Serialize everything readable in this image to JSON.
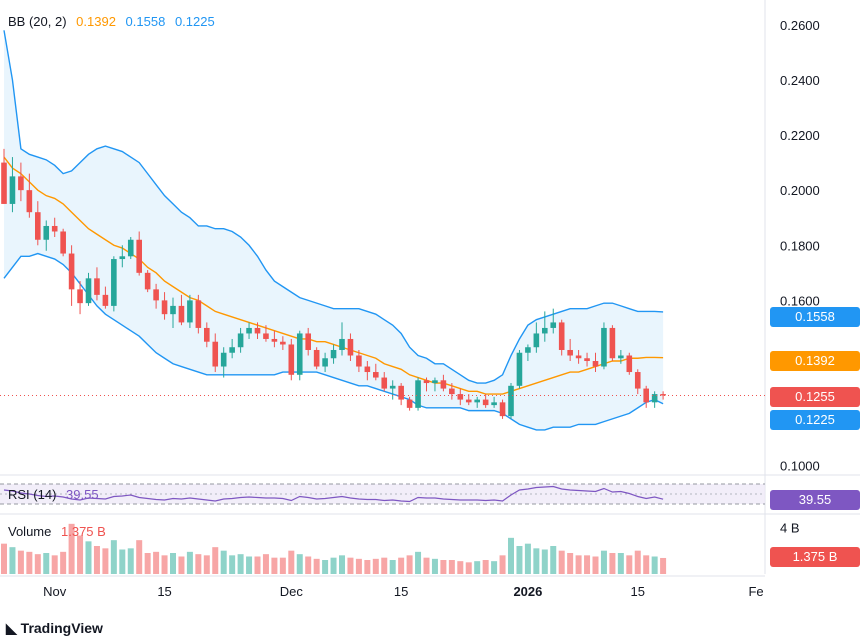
{
  "legends": {
    "bb": {
      "label": "BB (20, 2)",
      "basis": "0.1392",
      "upper": "0.1558",
      "lower": "0.1225"
    },
    "rsi": {
      "label": "RSI (14)",
      "value": "39.55"
    },
    "volume": {
      "label": "Volume",
      "value": "1.375 B"
    }
  },
  "price_tags": {
    "upper": "0.1558",
    "basis": "0.1392",
    "last": "0.1255",
    "lower": "0.1225",
    "rsi": "39.55",
    "volume": "1.375 B"
  },
  "axis": {
    "price_ticks": [
      "0.2600",
      "0.2400",
      "0.2200",
      "0.2000",
      "0.1800",
      "0.1600",
      "0.1000"
    ],
    "volume_tick": "4 B",
    "time_ticks": [
      "Nov",
      "15",
      "Dec",
      "15",
      "2026",
      "15",
      "Fe"
    ]
  },
  "branding": {
    "logo_text": "TradingView"
  },
  "colors": {
    "up": "#26a69a",
    "down": "#ef5350",
    "basis": "#ff9800",
    "band": "#2196f3",
    "band_fill": "#e3f2fd",
    "rsi": "#7e57c2",
    "vol_up": "#8fd3c9",
    "vol_down": "#f7a6a6"
  },
  "chart_data": {
    "type": "candlestick",
    "price_range": [
      0.097,
      0.269
    ],
    "candles": [
      [
        0.21,
        0.215,
        0.195,
        0.195
      ],
      [
        0.195,
        0.212,
        0.192,
        0.205
      ],
      [
        0.205,
        0.21,
        0.196,
        0.2
      ],
      [
        0.2,
        0.206,
        0.19,
        0.192
      ],
      [
        0.192,
        0.196,
        0.18,
        0.182
      ],
      [
        0.182,
        0.189,
        0.178,
        0.187
      ],
      [
        0.187,
        0.19,
        0.183,
        0.185
      ],
      [
        0.185,
        0.186,
        0.176,
        0.177
      ],
      [
        0.177,
        0.18,
        0.158,
        0.164
      ],
      [
        0.164,
        0.167,
        0.155,
        0.159
      ],
      [
        0.159,
        0.17,
        0.158,
        0.168
      ],
      [
        0.168,
        0.172,
        0.16,
        0.162
      ],
      [
        0.162,
        0.165,
        0.157,
        0.158
      ],
      [
        0.158,
        0.176,
        0.156,
        0.175
      ],
      [
        0.175,
        0.18,
        0.172,
        0.176
      ],
      [
        0.176,
        0.183,
        0.175,
        0.182
      ],
      [
        0.182,
        0.185,
        0.169,
        0.17
      ],
      [
        0.17,
        0.171,
        0.163,
        0.164
      ],
      [
        0.164,
        0.166,
        0.157,
        0.16
      ],
      [
        0.16,
        0.163,
        0.153,
        0.155
      ],
      [
        0.155,
        0.161,
        0.15,
        0.158
      ],
      [
        0.158,
        0.162,
        0.151,
        0.152
      ],
      [
        0.152,
        0.162,
        0.15,
        0.16
      ],
      [
        0.16,
        0.162,
        0.148,
        0.15
      ],
      [
        0.15,
        0.152,
        0.143,
        0.145
      ],
      [
        0.145,
        0.148,
        0.134,
        0.136
      ],
      [
        0.136,
        0.143,
        0.132,
        0.141
      ],
      [
        0.141,
        0.146,
        0.139,
        0.143
      ],
      [
        0.143,
        0.15,
        0.141,
        0.148
      ],
      [
        0.148,
        0.152,
        0.146,
        0.15
      ],
      [
        0.15,
        0.152,
        0.146,
        0.148
      ],
      [
        0.148,
        0.151,
        0.145,
        0.146
      ],
      [
        0.146,
        0.149,
        0.143,
        0.145
      ],
      [
        0.145,
        0.147,
        0.142,
        0.144
      ],
      [
        0.144,
        0.146,
        0.131,
        0.133
      ],
      [
        0.133,
        0.149,
        0.131,
        0.148
      ],
      [
        0.148,
        0.15,
        0.14,
        0.142
      ],
      [
        0.142,
        0.143,
        0.135,
        0.136
      ],
      [
        0.136,
        0.141,
        0.134,
        0.139
      ],
      [
        0.139,
        0.144,
        0.137,
        0.142
      ],
      [
        0.142,
        0.152,
        0.14,
        0.146
      ],
      [
        0.146,
        0.148,
        0.138,
        0.14
      ],
      [
        0.14,
        0.142,
        0.134,
        0.136
      ],
      [
        0.136,
        0.138,
        0.131,
        0.134
      ],
      [
        0.134,
        0.137,
        0.131,
        0.132
      ],
      [
        0.132,
        0.134,
        0.127,
        0.128
      ],
      [
        0.128,
        0.131,
        0.124,
        0.129
      ],
      [
        0.129,
        0.13,
        0.122,
        0.124
      ],
      [
        0.124,
        0.125,
        0.12,
        0.121
      ],
      [
        0.121,
        0.132,
        0.12,
        0.131
      ],
      [
        0.131,
        0.132,
        0.127,
        0.13
      ],
      [
        0.13,
        0.132,
        0.127,
        0.131
      ],
      [
        0.131,
        0.133,
        0.127,
        0.128
      ],
      [
        0.128,
        0.13,
        0.124,
        0.126
      ],
      [
        0.126,
        0.128,
        0.122,
        0.124
      ],
      [
        0.124,
        0.126,
        0.122,
        0.123
      ],
      [
        0.123,
        0.125,
        0.121,
        0.124
      ],
      [
        0.124,
        0.126,
        0.121,
        0.122
      ],
      [
        0.122,
        0.125,
        0.121,
        0.123
      ],
      [
        0.123,
        0.124,
        0.117,
        0.118
      ],
      [
        0.118,
        0.13,
        0.117,
        0.129
      ],
      [
        0.129,
        0.142,
        0.128,
        0.141
      ],
      [
        0.141,
        0.144,
        0.138,
        0.143
      ],
      [
        0.143,
        0.152,
        0.141,
        0.148
      ],
      [
        0.148,
        0.156,
        0.145,
        0.15
      ],
      [
        0.15,
        0.157,
        0.148,
        0.152
      ],
      [
        0.152,
        0.153,
        0.14,
        0.142
      ],
      [
        0.142,
        0.146,
        0.138,
        0.14
      ],
      [
        0.14,
        0.142,
        0.137,
        0.139
      ],
      [
        0.139,
        0.141,
        0.136,
        0.138
      ],
      [
        0.138,
        0.141,
        0.134,
        0.136
      ],
      [
        0.136,
        0.152,
        0.135,
        0.15
      ],
      [
        0.15,
        0.151,
        0.138,
        0.139
      ],
      [
        0.139,
        0.142,
        0.137,
        0.14
      ],
      [
        0.14,
        0.141,
        0.133,
        0.134
      ],
      [
        0.134,
        0.135,
        0.126,
        0.128
      ],
      [
        0.128,
        0.129,
        0.121,
        0.123
      ],
      [
        0.123,
        0.127,
        0.121,
        0.126
      ],
      [
        0.126,
        0.127,
        0.124,
        0.1255
      ]
    ],
    "bb_upper": [
      0.258,
      0.24,
      0.215,
      0.213,
      0.212,
      0.211,
      0.209,
      0.206,
      0.207,
      0.21,
      0.213,
      0.215,
      0.216,
      0.215,
      0.214,
      0.212,
      0.21,
      0.206,
      0.202,
      0.198,
      0.195,
      0.192,
      0.19,
      0.187,
      0.187,
      0.186,
      0.186,
      0.185,
      0.183,
      0.18,
      0.176,
      0.171,
      0.167,
      0.165,
      0.163,
      0.161,
      0.16,
      0.159,
      0.158,
      0.157,
      0.157,
      0.157,
      0.157,
      0.156,
      0.155,
      0.153,
      0.151,
      0.148,
      0.143,
      0.14,
      0.139,
      0.137,
      0.137,
      0.135,
      0.133,
      0.131,
      0.13,
      0.13,
      0.131,
      0.133,
      0.14,
      0.146,
      0.151,
      0.153,
      0.154,
      0.155,
      0.156,
      0.157,
      0.157,
      0.157,
      0.158,
      0.159,
      0.159,
      0.158,
      0.157,
      0.156,
      0.156,
      0.156,
      0.1558
    ],
    "bb_basis": [
      0.212,
      0.208,
      0.206,
      0.203,
      0.2,
      0.198,
      0.197,
      0.195,
      0.192,
      0.189,
      0.186,
      0.184,
      0.182,
      0.18,
      0.179,
      0.177,
      0.175,
      0.172,
      0.17,
      0.167,
      0.165,
      0.163,
      0.161,
      0.16,
      0.158,
      0.156,
      0.155,
      0.154,
      0.153,
      0.152,
      0.151,
      0.15,
      0.149,
      0.148,
      0.147,
      0.146,
      0.146,
      0.145,
      0.145,
      0.144,
      0.143,
      0.142,
      0.141,
      0.14,
      0.139,
      0.137,
      0.136,
      0.135,
      0.133,
      0.132,
      0.131,
      0.13,
      0.13,
      0.129,
      0.128,
      0.127,
      0.127,
      0.126,
      0.126,
      0.126,
      0.127,
      0.128,
      0.129,
      0.13,
      0.131,
      0.132,
      0.133,
      0.134,
      0.134,
      0.135,
      0.136,
      0.137,
      0.138,
      0.138,
      0.139,
      0.139,
      0.1393,
      0.1393,
      0.1392
    ],
    "bb_lower": [
      0.168,
      0.172,
      0.176,
      0.176,
      0.177,
      0.176,
      0.175,
      0.173,
      0.17,
      0.166,
      0.162,
      0.158,
      0.155,
      0.153,
      0.151,
      0.149,
      0.147,
      0.144,
      0.141,
      0.139,
      0.137,
      0.136,
      0.135,
      0.134,
      0.133,
      0.133,
      0.133,
      0.133,
      0.133,
      0.133,
      0.133,
      0.133,
      0.133,
      0.134,
      0.134,
      0.134,
      0.134,
      0.134,
      0.133,
      0.132,
      0.131,
      0.13,
      0.129,
      0.129,
      0.128,
      0.127,
      0.126,
      0.125,
      0.124,
      0.122,
      0.121,
      0.121,
      0.121,
      0.121,
      0.121,
      0.12,
      0.12,
      0.12,
      0.12,
      0.119,
      0.117,
      0.115,
      0.114,
      0.113,
      0.113,
      0.114,
      0.114,
      0.114,
      0.115,
      0.115,
      0.115,
      0.116,
      0.117,
      0.118,
      0.119,
      0.121,
      0.123,
      0.124,
      0.1225
    ],
    "rsi": [
      58,
      56,
      52,
      50,
      47,
      45,
      46,
      44,
      40,
      38,
      42,
      41,
      40,
      45,
      46,
      48,
      43,
      41,
      39,
      38,
      41,
      40,
      42,
      40,
      38,
      36,
      40,
      41,
      43,
      44,
      43,
      42,
      42,
      41,
      37,
      45,
      43,
      40,
      41,
      43,
      45,
      42,
      40,
      39,
      39,
      37,
      38,
      36,
      35,
      43,
      42,
      42,
      40,
      39,
      38,
      38,
      38,
      37,
      38,
      36,
      48,
      58,
      60,
      63,
      64,
      65,
      60,
      58,
      57,
      56,
      55,
      61,
      54,
      55,
      51,
      45,
      41,
      44,
      39.55
    ],
    "volume": [
      2.6,
      2.3,
      2.0,
      1.9,
      1.7,
      1.8,
      1.6,
      1.9,
      4.3,
      3.3,
      2.8,
      2.4,
      2.2,
      2.9,
      2.1,
      2.2,
      2.9,
      1.8,
      1.9,
      1.6,
      1.8,
      1.5,
      1.9,
      1.7,
      1.6,
      2.3,
      2.0,
      1.6,
      1.7,
      1.5,
      1.5,
      1.7,
      1.4,
      1.4,
      2.0,
      1.7,
      1.5,
      1.3,
      1.2,
      1.4,
      1.6,
      1.4,
      1.3,
      1.2,
      1.3,
      1.4,
      1.2,
      1.4,
      1.6,
      1.9,
      1.4,
      1.3,
      1.2,
      1.2,
      1.1,
      1.0,
      1.1,
      1.2,
      1.1,
      1.6,
      3.1,
      2.4,
      2.6,
      2.2,
      2.1,
      2.4,
      2.0,
      1.8,
      1.6,
      1.6,
      1.5,
      2.0,
      1.8,
      1.8,
      1.6,
      2.0,
      1.6,
      1.5,
      1.375
    ],
    "volume_range": [
      0,
      4.8
    ]
  }
}
